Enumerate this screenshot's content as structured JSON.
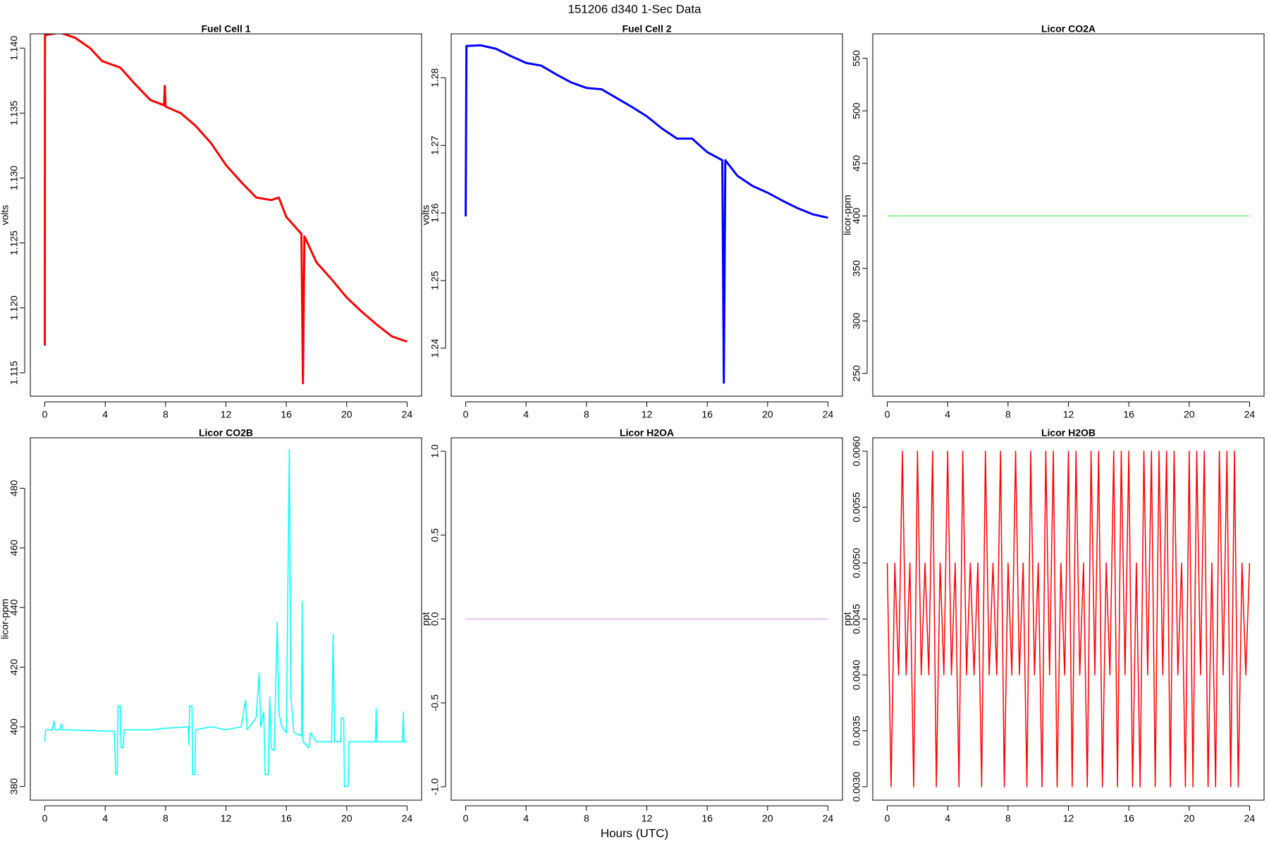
{
  "title": "151206   d340   1-Sec Data",
  "xlabel": "Hours (UTC)",
  "chart_data": [
    {
      "type": "line",
      "title": "Fuel Cell 1",
      "ylabel": "volts",
      "x": [
        0,
        0.01,
        1,
        2,
        3,
        3.8,
        5,
        6,
        7,
        7.9,
        7.95,
        8,
        9,
        10,
        11,
        12,
        13,
        14,
        15,
        15.5,
        16,
        17,
        17.1,
        17.2,
        18,
        19,
        20,
        21,
        22,
        23,
        24
      ],
      "series": [
        {
          "color": "#ff0000",
          "values": [
            1.1171,
            1.141,
            1.1412,
            1.1408,
            1.14,
            1.139,
            1.1385,
            1.1372,
            1.136,
            1.1356,
            1.1371,
            1.1355,
            1.135,
            1.134,
            1.1327,
            1.131,
            1.1297,
            1.1285,
            1.1283,
            1.1285,
            1.127,
            1.1257,
            1.1142,
            1.1255,
            1.1235,
            1.1222,
            1.1208,
            1.1197,
            1.1187,
            1.1178,
            1.1174
          ]
        }
      ],
      "xlim": [
        -0.96,
        24.96
      ],
      "xticks": [
        0,
        4,
        8,
        12,
        16,
        20,
        24
      ],
      "ylim": [
        1.1132,
        1.1411
      ],
      "yticks": [
        1.115,
        {
          "value": 1.12,
          "label": "1.120"
        },
        1.125,
        {
          "value": 1.13,
          "label": "1.130"
        },
        1.135,
        {
          "value": 1.14,
          "label": "1.140"
        }
      ],
      "line_width": 3
    },
    {
      "type": "line",
      "title": "Fuel Cell 2",
      "ylabel": "volts",
      "x": [
        0,
        0.05,
        1,
        2,
        3,
        4,
        5,
        6,
        7,
        8,
        9,
        10,
        11,
        12,
        13,
        14,
        15,
        15.5,
        16,
        17,
        17.1,
        17.2,
        18,
        19,
        20,
        21,
        22,
        23,
        24
      ],
      "series": [
        {
          "color": "#0000ff",
          "values": [
            1.2595,
            1.2847,
            1.2848,
            1.2843,
            1.2832,
            1.2822,
            1.2818,
            1.2805,
            1.2793,
            1.2785,
            1.2783,
            1.277,
            1.2757,
            1.2743,
            1.2725,
            1.271,
            1.271,
            1.27,
            1.269,
            1.2678,
            1.2349,
            1.2678,
            1.2655,
            1.264,
            1.263,
            1.2618,
            1.2607,
            1.2598,
            1.2593
          ]
        }
      ],
      "xlim": [
        -0.96,
        24.96
      ],
      "xticks": [
        0,
        4,
        8,
        12,
        16,
        20,
        24
      ],
      "ylim": [
        1.2329,
        1.2865
      ],
      "yticks": [
        1.24,
        1.25,
        1.26,
        1.27,
        1.28
      ],
      "line_width": 3
    },
    {
      "type": "line",
      "title": "Licor CO2A",
      "ylabel": "licor-ppm",
      "x": [
        0,
        24
      ],
      "series": [
        {
          "color": "#77ee77",
          "values": [
            400,
            400
          ]
        }
      ],
      "xlim": [
        -0.96,
        24.96
      ],
      "xticks": [
        0,
        4,
        8,
        12,
        16,
        20,
        24
      ],
      "ylim": [
        228.3,
        573.3
      ],
      "yticks": [
        250,
        300,
        350,
        400,
        450,
        500,
        550
      ],
      "line_width": 1.5
    },
    {
      "type": "line",
      "title": "Licor CO2B",
      "ylabel": "licor-ppm",
      "x": [
        0,
        0.05,
        0.5,
        0.6,
        0.7,
        1,
        1.1,
        1.2,
        4.6,
        4.7,
        4.8,
        4.85,
        5.0,
        5.05,
        5.2,
        5.25,
        7,
        8,
        9.5,
        9.55,
        9.6,
        9.75,
        9.8,
        9.95,
        10,
        11,
        12,
        13,
        13.3,
        13.4,
        14,
        14.2,
        14.3,
        14.5,
        14.6,
        14.8,
        14.9,
        15,
        15.2,
        15.3,
        15.4,
        15.5,
        15.7,
        16,
        16.2,
        16.3,
        16.5,
        17,
        17.05,
        17.1,
        17.5,
        17.6,
        18,
        19,
        19.1,
        19.2,
        19.6,
        19.65,
        19.8,
        19.85,
        20.1,
        20.15,
        21.9,
        21.95,
        22,
        23.7,
        23.75,
        23.8,
        24
      ],
      "series": [
        {
          "color": "#00ffff",
          "values": [
            395,
            399,
            399,
            402,
            399,
            399,
            401,
            399,
            398.5,
            384,
            384,
            407,
            407,
            393,
            393,
            399,
            399,
            399.5,
            400,
            394,
            407,
            407,
            384,
            384,
            399,
            400,
            399,
            400,
            409,
            399,
            403,
            418,
            400,
            405,
            384,
            384,
            410,
            393,
            392,
            415,
            435,
            405,
            400,
            398,
            493,
            410,
            398,
            397,
            442,
            395,
            393,
            398,
            395,
            395,
            431,
            395,
            395,
            403,
            403,
            380,
            380,
            395,
            395,
            406,
            395,
            395,
            405,
            395,
            395
          ]
        }
      ],
      "xlim": [
        -0.96,
        24.96
      ],
      "xticks": [
        0,
        4,
        8,
        12,
        16,
        20,
        24
      ],
      "ylim": [
        375.4,
        496.9
      ],
      "yticks": [
        380,
        400,
        420,
        440,
        460,
        480
      ],
      "line_width": 1.5
    },
    {
      "type": "line",
      "title": "Licor H2OA",
      "ylabel": "ppt",
      "x": [
        0,
        24
      ],
      "series": [
        {
          "color": "#dd88dd",
          "values": [
            0,
            0
          ]
        }
      ],
      "xlim": [
        -0.96,
        24.96
      ],
      "xticks": [
        0,
        4,
        8,
        12,
        16,
        20,
        24
      ],
      "ylim": [
        -1.08,
        1.08
      ],
      "yticks": [
        {
          "value": -1,
          "label": "-1.0"
        },
        -0.5,
        {
          "value": 0,
          "label": "0.0"
        },
        0.5,
        {
          "value": 1,
          "label": "1.0"
        }
      ],
      "line_width": 1
    },
    {
      "type": "line",
      "title": "Licor H2OB",
      "ylabel": "ppt",
      "x": [
        0,
        0.25,
        0.5,
        0.75,
        1,
        1.25,
        1.5,
        1.75,
        2,
        2.25,
        2.5,
        2.75,
        3,
        3.25,
        3.5,
        3.75,
        4,
        4.25,
        4.5,
        4.75,
        5,
        5.25,
        5.5,
        5.75,
        6,
        6.25,
        6.5,
        6.75,
        7,
        7.25,
        7.5,
        7.75,
        8,
        8.25,
        8.5,
        8.75,
        9,
        9.25,
        9.5,
        9.75,
        10,
        10.25,
        10.5,
        10.75,
        11,
        11.25,
        11.5,
        11.75,
        12,
        12.25,
        12.5,
        12.75,
        13,
        13.25,
        13.5,
        13.75,
        14,
        14.25,
        14.5,
        14.75,
        15,
        15.25,
        15.5,
        15.75,
        16,
        16.25,
        16.5,
        16.75,
        17,
        17.25,
        17.5,
        17.75,
        18,
        18.25,
        18.5,
        18.75,
        19,
        19.25,
        19.5,
        19.75,
        20,
        20.25,
        20.5,
        20.75,
        21,
        21.25,
        21.5,
        21.75,
        22,
        22.25,
        22.5,
        22.75,
        23,
        23.25,
        23.5,
        23.75,
        24
      ],
      "series": [
        {
          "color": "#ff0000",
          "values": [
            0.005,
            0.003,
            0.005,
            0.004,
            0.006,
            0.004,
            0.005,
            0.003,
            0.006,
            0.004,
            0.005,
            0.004,
            0.006,
            0.003,
            0.005,
            0.004,
            0.006,
            0.004,
            0.005,
            0.003,
            0.006,
            0.004,
            0.005,
            0.004,
            0.005,
            0.003,
            0.006,
            0.004,
            0.005,
            0.004,
            0.006,
            0.003,
            0.005,
            0.004,
            0.006,
            0.004,
            0.005,
            0.003,
            0.006,
            0.004,
            0.005,
            0.003,
            0.006,
            0.004,
            0.006,
            0.003,
            0.005,
            0.004,
            0.006,
            0.003,
            0.006,
            0.004,
            0.005,
            0.003,
            0.006,
            0.004,
            0.006,
            0.003,
            0.005,
            0.004,
            0.006,
            0.003,
            0.006,
            0.004,
            0.006,
            0.003,
            0.005,
            0.003,
            0.006,
            0.004,
            0.006,
            0.003,
            0.006,
            0.004,
            0.006,
            0.003,
            0.006,
            0.004,
            0.005,
            0.003,
            0.006,
            0.003,
            0.006,
            0.004,
            0.006,
            0.003,
            0.005,
            0.003,
            0.006,
            0.004,
            0.006,
            0.003,
            0.006,
            0.003,
            0.005,
            0.004,
            0.005
          ]
        }
      ],
      "xlim": [
        -0.96,
        24.96
      ],
      "xticks": [
        0,
        4,
        8,
        12,
        16,
        20,
        24
      ],
      "ylim": [
        0.00288,
        0.00612
      ],
      "yticks": [
        {
          "value": 0.003,
          "label": "0.0030"
        },
        0.0035,
        {
          "value": 0.004,
          "label": "0.0040"
        },
        0.0045,
        {
          "value": 0.005,
          "label": "0.0050"
        },
        0.0055,
        {
          "value": 0.006,
          "label": "0.0060"
        }
      ],
      "line_width": 1.5
    }
  ]
}
